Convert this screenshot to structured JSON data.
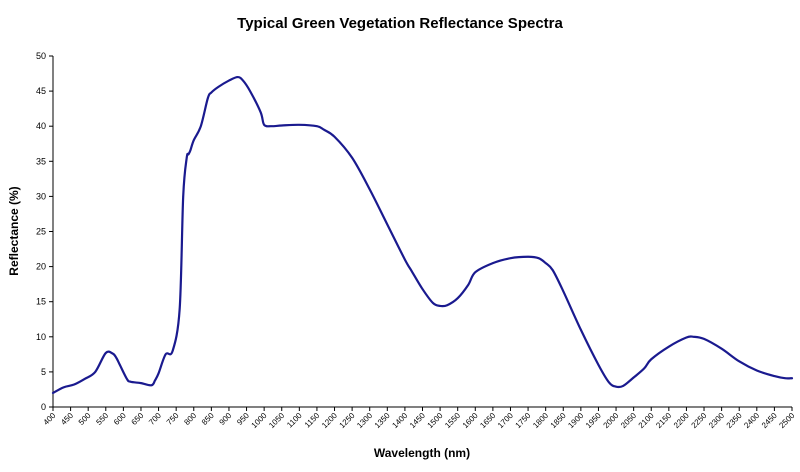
{
  "chart_data": {
    "type": "line",
    "title": "Typical Green Vegetation Reflectance Spectra",
    "xlabel": "Wavelength (nm)",
    "ylabel": "Reflectance (%)",
    "xlim": [
      400,
      2500
    ],
    "ylim": [
      0,
      50
    ],
    "yticks": [
      0,
      5,
      10,
      15,
      20,
      25,
      30,
      35,
      40,
      45,
      50
    ],
    "xticks": [
      400,
      450,
      500,
      550,
      600,
      650,
      700,
      750,
      800,
      850,
      900,
      950,
      1000,
      1050,
      1100,
      1150,
      1200,
      1250,
      1300,
      1350,
      1400,
      1450,
      1500,
      1550,
      1600,
      1650,
      1700,
      1750,
      1800,
      1850,
      1900,
      1950,
      2000,
      2050,
      2100,
      2150,
      2200,
      2250,
      2300,
      2350,
      2400,
      2450,
      2500
    ],
    "grid": false,
    "legend": "none",
    "series_color": "#1a1a8f",
    "series": [
      {
        "x": [
          400,
          430,
          460,
          490,
          520,
          550,
          570,
          580,
          590,
          610,
          620,
          650,
          680,
          690,
          700,
          720,
          740,
          760,
          770,
          780,
          785,
          790,
          800,
          820,
          840,
          850,
          870,
          900,
          925,
          940,
          960,
          990,
          1000,
          1020,
          1050,
          1100,
          1150,
          1170,
          1200,
          1250,
          1300,
          1350,
          1400,
          1420,
          1450,
          1480,
          1500,
          1520,
          1550,
          1580,
          1600,
          1650,
          1700,
          1750,
          1780,
          1800,
          1820,
          1850,
          1900,
          1950,
          1980,
          2000,
          2020,
          2050,
          2080,
          2100,
          2150,
          2200,
          2220,
          2250,
          2300,
          2350,
          2400,
          2450,
          2480,
          2500
        ],
        "y": [
          2,
          2.8,
          3.2,
          4,
          5,
          7.7,
          7.6,
          7,
          6,
          4,
          3.6,
          3.4,
          3.1,
          3.8,
          4.8,
          7.5,
          8,
          14,
          30,
          35.5,
          36,
          36.5,
          38,
          40,
          44,
          44.8,
          45.6,
          46.5,
          47,
          46.5,
          45,
          42,
          40.2,
          40,
          40.1,
          40.2,
          40,
          39.5,
          38.5,
          35.5,
          31,
          26,
          21,
          19.3,
          16.8,
          14.8,
          14.4,
          14.5,
          15.5,
          17.4,
          19.2,
          20.5,
          21.2,
          21.4,
          21.2,
          20.5,
          19.5,
          16.5,
          11,
          6,
          3.5,
          2.9,
          3,
          4.2,
          5.5,
          6.8,
          8.6,
          9.9,
          10,
          9.7,
          8.3,
          6.5,
          5.2,
          4.4,
          4.1,
          4.1
        ]
      }
    ]
  }
}
